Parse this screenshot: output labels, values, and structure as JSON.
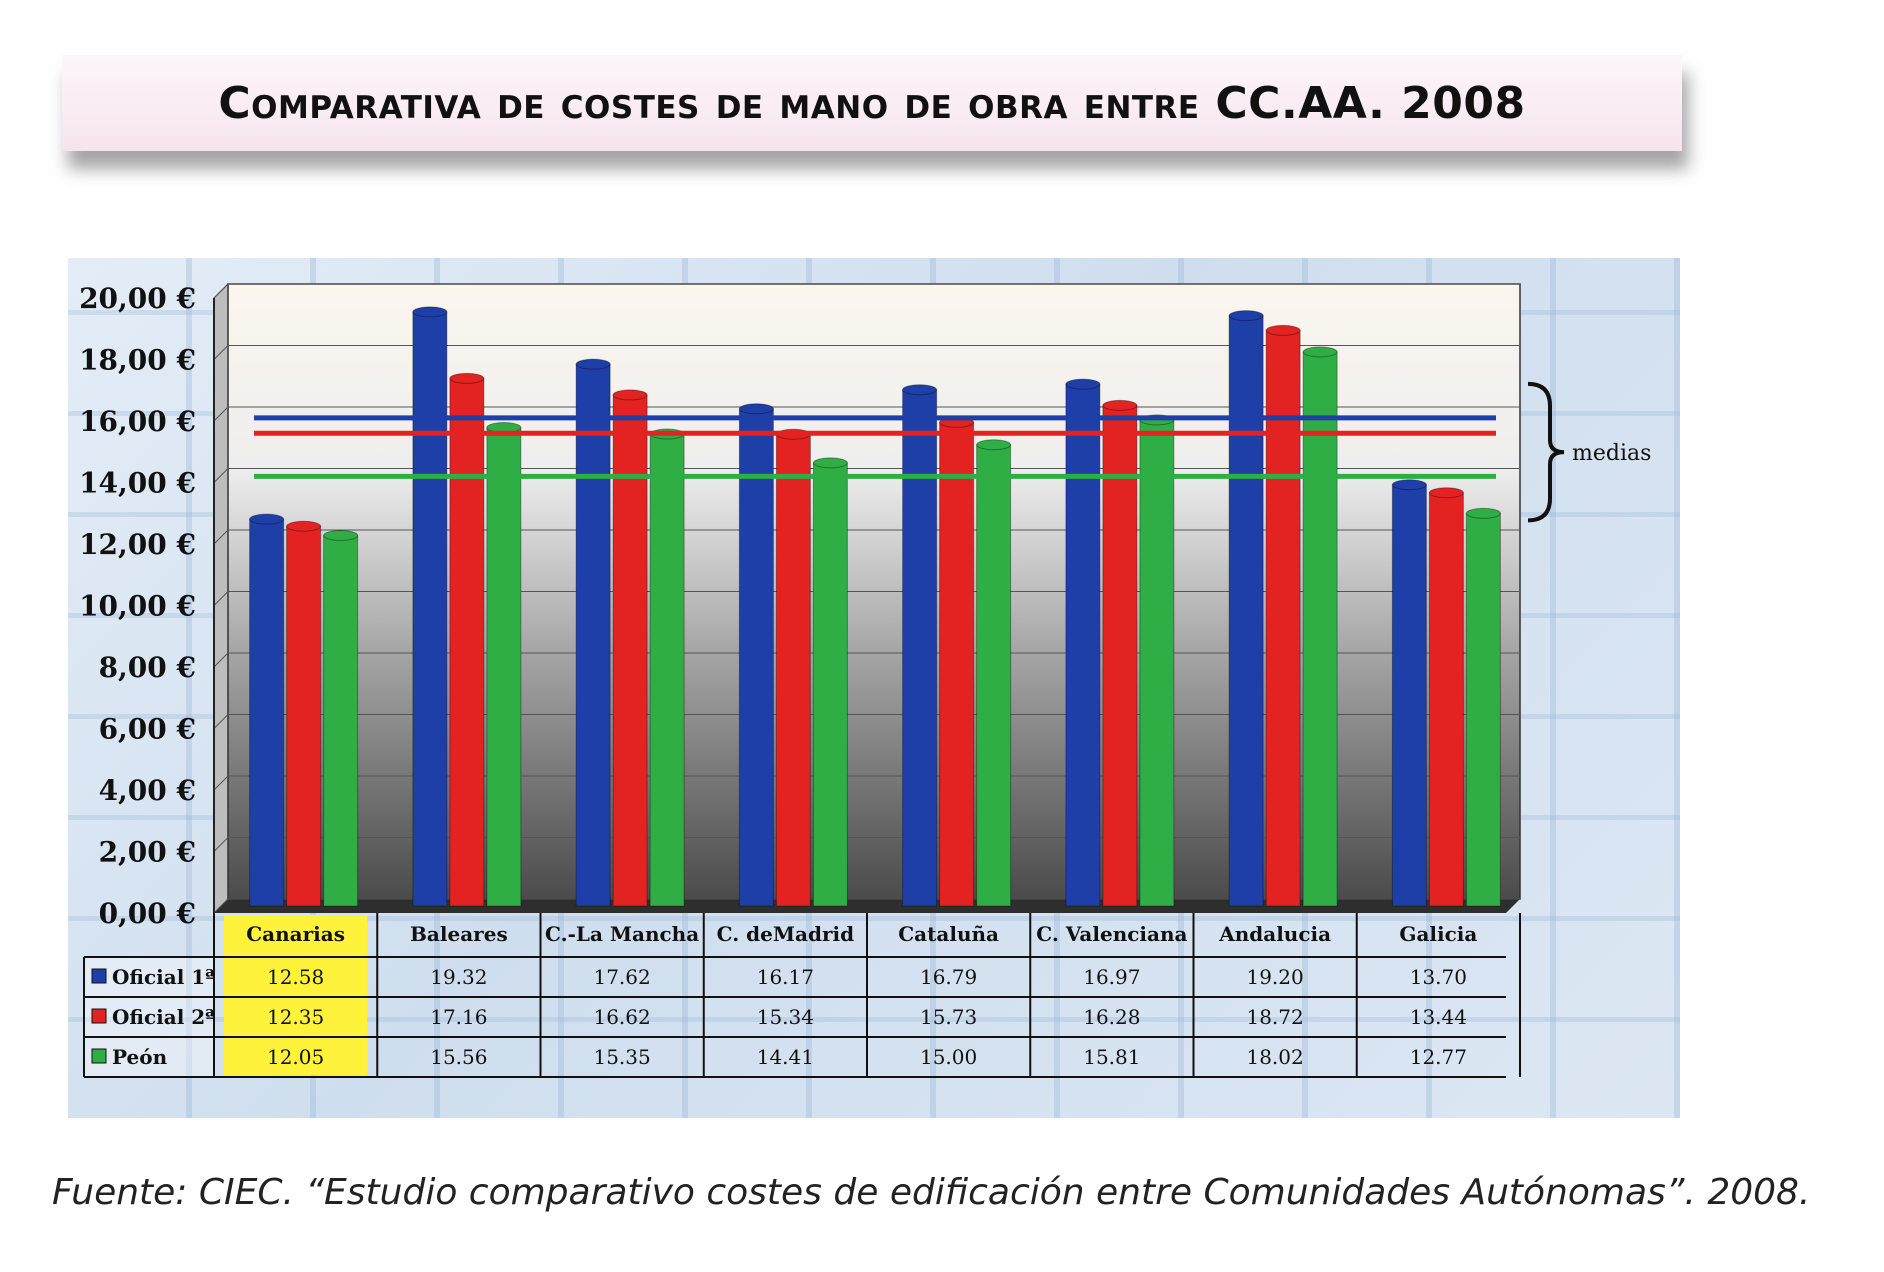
{
  "title": "Comparativa de costes de mano de obra entre CC.AA. 2008",
  "source_note": "Fuente: CIEC. “Estudio comparativo costes de edificación entre Comunidades Autónomas”. 2008.",
  "chart_data": {
    "type": "bar",
    "categories": [
      "Canarias",
      "Baleares",
      "C.-La Mancha",
      "C. deMadrid",
      "Cataluña",
      "C. Valenciana",
      "Andalucia",
      "Galicia"
    ],
    "series": [
      {
        "name": "Oficial 1ª",
        "color": "#1f3fa8",
        "values": [
          12.58,
          19.32,
          17.62,
          16.17,
          16.79,
          16.97,
          19.2,
          13.7
        ]
      },
      {
        "name": "Oficial 2ª",
        "color": "#e32222",
        "values": [
          12.35,
          17.16,
          16.62,
          15.34,
          15.73,
          16.28,
          18.72,
          13.44
        ]
      },
      {
        "name": "Peón",
        "color": "#2fae45",
        "values": [
          12.05,
          15.56,
          15.35,
          14.41,
          15.0,
          15.81,
          18.02,
          12.77
        ]
      }
    ],
    "ylim": [
      0,
      20
    ],
    "yticks": [
      "0,00 €",
      "2,00 €",
      "4,00 €",
      "6,00 €",
      "8,00 €",
      "10,00 €",
      "12,00 €",
      "14,00 €",
      "16,00 €",
      "18,00 €",
      "20,00 €"
    ],
    "table_values": [
      [
        "12.58",
        "19.32",
        "17.62",
        "16.17",
        "16.79",
        "16.97",
        "19.20",
        "13.70"
      ],
      [
        "12.35",
        "17.16",
        "16.62",
        "15.34",
        "15.73",
        "16.28",
        "18.72",
        "13.44"
      ],
      [
        "12.05",
        "15.56",
        "15.35",
        "14.41",
        "15.00",
        "15.81",
        "18.02",
        "12.77"
      ]
    ],
    "averages": [
      16.1,
      15.6,
      14.2
    ],
    "average_label": "medias",
    "highlight_category": "Canarias",
    "highlight_color": "#fff23a",
    "grid": true
  }
}
